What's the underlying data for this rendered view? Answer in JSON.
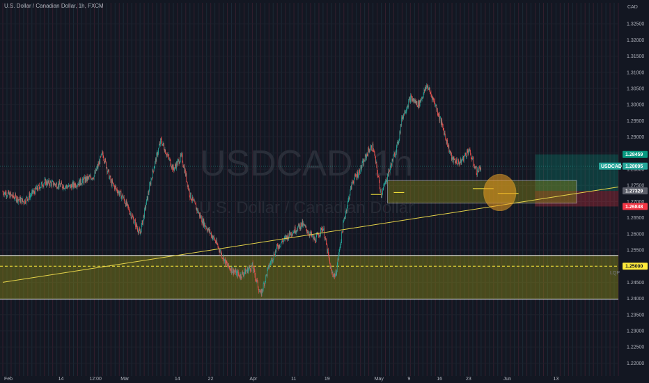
{
  "header": {
    "title": "U.S. Dollar / Canadian Dollar, 1h, FXCM",
    "currency": "CAD"
  },
  "watermark": {
    "symbol": "USDCAD, 1h",
    "description": "U.S. Dollar / Canadian Dollar"
  },
  "colors": {
    "background": "#131722",
    "grid": "#1e222d",
    "up_candle": "#26a69a",
    "down_candle": "#ef5350",
    "zone_fill": "#8a8a18",
    "zone_border": "#ffffff",
    "trendline": "#e6d44a",
    "circle": "#f0a020",
    "tp_green": "#089981",
    "sl_red": "#f23645",
    "yellow_tag": "#ffeb3b"
  },
  "chart_data": {
    "type": "candlestick",
    "symbol": "USDCAD",
    "interval": "1h",
    "source": "FXCM",
    "y_axis_unit": "CAD",
    "ylim": [
      1.216,
      1.3315
    ],
    "y_ticks": [
      1.325,
      1.32,
      1.315,
      1.31,
      1.305,
      1.3,
      1.295,
      1.29,
      1.285,
      1.28,
      1.275,
      1.27,
      1.265,
      1.26,
      1.255,
      1.25,
      1.245,
      1.24,
      1.235,
      1.23,
      1.225,
      1.22
    ],
    "x_range_days": [
      0,
      148
    ],
    "x_ticks": [
      {
        "label": "Feb",
        "day": 0
      },
      {
        "label": "14",
        "day": 13
      },
      {
        "label": "12:00",
        "day": 20.5
      },
      {
        "label": "Mar",
        "day": 28
      },
      {
        "label": "14",
        "day": 41
      },
      {
        "label": "22",
        "day": 49
      },
      {
        "label": "Apr",
        "day": 59
      },
      {
        "label": "11",
        "day": 69
      },
      {
        "label": "19",
        "day": 77
      },
      {
        "label": "May",
        "day": 89
      },
      {
        "label": "9",
        "day": 97
      },
      {
        "label": "16",
        "day": 104
      },
      {
        "label": "23",
        "day": 111
      },
      {
        "label": "Jun",
        "day": 120
      },
      {
        "label": "13",
        "day": 132
      }
    ],
    "price_path": [
      {
        "day": 0,
        "price": 1.273
      },
      {
        "day": 5,
        "price": 1.27
      },
      {
        "day": 10,
        "price": 1.276
      },
      {
        "day": 16,
        "price": 1.2745
      },
      {
        "day": 22,
        "price": 1.278
      },
      {
        "day": 24,
        "price": 1.285
      },
      {
        "day": 26,
        "price": 1.276
      },
      {
        "day": 29,
        "price": 1.271
      },
      {
        "day": 33,
        "price": 1.26
      },
      {
        "day": 36,
        "price": 1.279
      },
      {
        "day": 38,
        "price": 1.289
      },
      {
        "day": 41,
        "price": 1.28
      },
      {
        "day": 43,
        "price": 1.284
      },
      {
        "day": 45,
        "price": 1.272
      },
      {
        "day": 48,
        "price": 1.264
      },
      {
        "day": 51,
        "price": 1.258
      },
      {
        "day": 54,
        "price": 1.25
      },
      {
        "day": 57,
        "price": 1.247
      },
      {
        "day": 60,
        "price": 1.25
      },
      {
        "day": 62,
        "price": 1.241
      },
      {
        "day": 64,
        "price": 1.25
      },
      {
        "day": 66,
        "price": 1.256
      },
      {
        "day": 69,
        "price": 1.26
      },
      {
        "day": 72,
        "price": 1.263
      },
      {
        "day": 75,
        "price": 1.258
      },
      {
        "day": 77,
        "price": 1.262
      },
      {
        "day": 79,
        "price": 1.248
      },
      {
        "day": 80,
        "price": 1.247
      },
      {
        "day": 82,
        "price": 1.264
      },
      {
        "day": 84,
        "price": 1.276
      },
      {
        "day": 86,
        "price": 1.28
      },
      {
        "day": 88,
        "price": 1.286
      },
      {
        "day": 89,
        "price": 1.287
      },
      {
        "day": 91,
        "price": 1.272
      },
      {
        "day": 93,
        "price": 1.28
      },
      {
        "day": 95,
        "price": 1.288
      },
      {
        "day": 96,
        "price": 1.296
      },
      {
        "day": 98,
        "price": 1.302
      },
      {
        "day": 100,
        "price": 1.3
      },
      {
        "day": 102,
        "price": 1.306
      },
      {
        "day": 104,
        "price": 1.3
      },
      {
        "day": 106,
        "price": 1.292
      },
      {
        "day": 108,
        "price": 1.283
      },
      {
        "day": 110,
        "price": 1.282
      },
      {
        "day": 112,
        "price": 1.286
      },
      {
        "day": 114,
        "price": 1.279
      },
      {
        "day": 115,
        "price": 1.281
      }
    ],
    "last_price": 1.28095,
    "price_tags": [
      {
        "label": "1.28459",
        "value": 1.28459,
        "kind": "take-profit"
      },
      {
        "label": "1.28095",
        "value": 1.28095,
        "kind": "last-price",
        "symbol": "USDCAD"
      },
      {
        "label": "1.27329",
        "value": 1.27329,
        "kind": "entry"
      },
      {
        "label": "1.26848",
        "value": 1.26848,
        "kind": "stop-loss"
      },
      {
        "label": "1.25000",
        "value": 1.25,
        "kind": "support-level"
      }
    ],
    "annotations": {
      "support_zone": {
        "top": 1.2533,
        "bottom": 1.2398,
        "mid": 1.25,
        "label": "LQP"
      },
      "demand_zone": {
        "start_day": 92.5,
        "top": 1.2765,
        "bottom": 1.2695
      },
      "trendline": {
        "start": {
          "day": 0,
          "price": 1.245
        },
        "end": {
          "day": 148,
          "price": 1.2745
        }
      },
      "circle": {
        "day": 119.5,
        "price": 1.2728
      },
      "position": {
        "start_day": 128,
        "end_day": 137,
        "entry": 1.27329,
        "take_profit": 1.28459,
        "stop_loss": 1.26848
      }
    }
  }
}
